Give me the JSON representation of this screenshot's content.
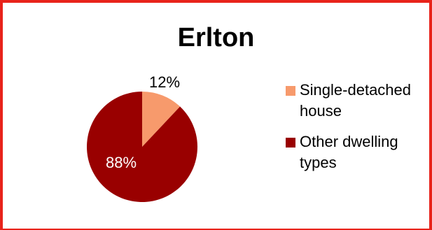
{
  "chart_data": {
    "type": "pie",
    "title": "Erlton",
    "categories": [
      "Single-detached house",
      "Other dwelling types"
    ],
    "values": [
      12,
      88
    ],
    "labels": [
      "12%",
      "88%"
    ],
    "colors": [
      "#f79a6c",
      "#990000"
    ],
    "legend_position": "right"
  },
  "frame_color": "#e8231b"
}
